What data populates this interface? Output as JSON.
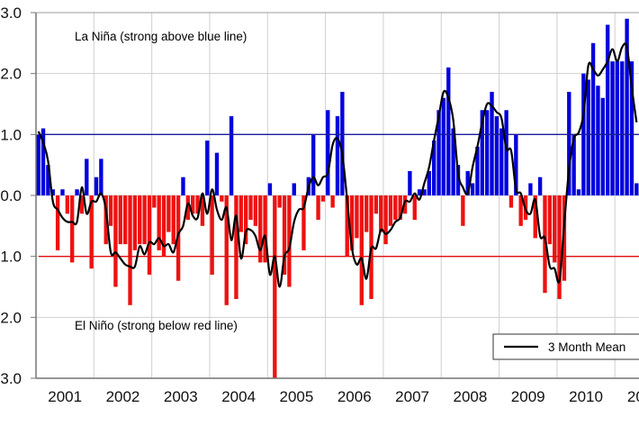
{
  "chart_data": {
    "type": "bar",
    "x_unit": "month",
    "x_start": "2001-01",
    "ylim": [
      -3,
      3
    ],
    "grid": true,
    "y_tick_values": [
      3,
      2,
      1,
      0,
      -1,
      -2,
      -3
    ],
    "y_tick_labels": [
      "3.0",
      "2.0",
      "1.0",
      "0.0",
      "1.0",
      "2.0",
      "3.0"
    ],
    "x_tick_labels": [
      "2001",
      "2002",
      "2003",
      "2004",
      "2005",
      "2006",
      "2007",
      "2008",
      "2009",
      "2010",
      "20"
    ],
    "thresholds": [
      {
        "value": 1,
        "color": "#1a1aa0"
      },
      {
        "value": -1,
        "color": "#e01010"
      }
    ],
    "annotations": {
      "la_nina": "La Niña (strong above blue line)",
      "el_nino": "El Niño (strong below red line)"
    },
    "legend": {
      "position": "bottom-right",
      "entries": [
        "3 Month Mean"
      ]
    },
    "colors": {
      "positive": "#0000dd",
      "negative": "#ee1111",
      "mean_line": "#000000"
    },
    "values": [
      1.0,
      1.1,
      0.5,
      0.1,
      -0.9,
      0.1,
      -0.3,
      -1.1,
      0.1,
      -0.3,
      0.6,
      -1.2,
      0.3,
      0.6,
      -0.8,
      -0.5,
      -1.5,
      -0.8,
      -0.8,
      -1.8,
      -0.9,
      -0.8,
      -0.8,
      -1.3,
      -0.2,
      -0.9,
      -1.0,
      -0.6,
      -0.8,
      -1.4,
      0.3,
      -0.4,
      -0.3,
      -0.3,
      -0.5,
      0.9,
      -1.3,
      0.7,
      -0.1,
      -1.8,
      1.3,
      -1.7,
      -0.6,
      -0.8,
      -0.4,
      -0.5,
      -1.1,
      -1.1,
      0.2,
      -3.0,
      -0.2,
      -1.3,
      -1.5,
      0.2,
      0.0,
      -0.9,
      0.3,
      1.0,
      -0.4,
      -0.1,
      1.4,
      -0.2,
      1.3,
      1.7,
      -1.0,
      -0.9,
      -0.7,
      -1.8,
      -0.6,
      -1.7,
      -0.3,
      -0.6,
      -0.8,
      -0.5,
      -0.4,
      -0.4,
      -0.3,
      0.4,
      -0.4,
      0.1,
      0.1,
      0.4,
      0.9,
      1.4,
      1.6,
      2.1,
      1.1,
      0.5,
      -0.5,
      0.4,
      0.2,
      0.8,
      1.4,
      1.4,
      1.7,
      1.3,
      1.1,
      1.4,
      -0.2,
      1.0,
      -0.5,
      -0.4,
      0.2,
      -0.7,
      0.3,
      -1.6,
      -0.8,
      -1.1,
      -1.7,
      -1.4,
      1.7,
      1.0,
      0.1,
      2.0,
      1.9,
      2.5,
      1.8,
      1.6,
      2.8,
      2.2,
      2.2,
      2.2,
      2.9,
      2.2,
      0.2
    ]
  }
}
